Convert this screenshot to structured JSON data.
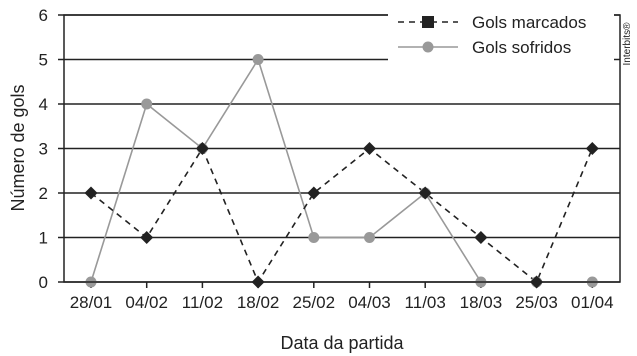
{
  "chart_data": {
    "type": "line",
    "title": "",
    "xlabel": "Data da partida",
    "ylabel": "Número de gols",
    "categories": [
      "28/01",
      "04/02",
      "11/02",
      "18/02",
      "25/02",
      "04/03",
      "11/03",
      "18/03",
      "25/03",
      "01/04"
    ],
    "ylim": [
      0,
      6
    ],
    "yticks": [
      0,
      1,
      2,
      3,
      4,
      5,
      6
    ],
    "grid": "horizontal",
    "legend_position": "top-right",
    "series": [
      {
        "name": "Gols marcados",
        "values": [
          2,
          1,
          3,
          0,
          2,
          3,
          2,
          1,
          0,
          3
        ],
        "color": "#222222",
        "line": "dashed",
        "marker": "diamond"
      },
      {
        "name": "Gols sofridos",
        "values": [
          0,
          4,
          3,
          5,
          1,
          1,
          2,
          0,
          0,
          0
        ],
        "color": "#999999",
        "line": "solid",
        "marker": "circle"
      }
    ],
    "watermark": "Interbits®"
  }
}
